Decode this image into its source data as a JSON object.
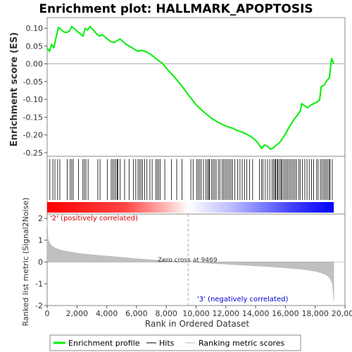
{
  "chart_data": {
    "type": "line",
    "title": "Enrichment plot: HALLMARK_APOPTOSIS",
    "xlabel": "Rank in Ordered Dataset",
    "xlim": [
      0,
      20000
    ],
    "x_ticks": [
      0,
      2000,
      4000,
      6000,
      8000,
      10000,
      12000,
      14000,
      16000,
      18000,
      20000
    ],
    "x_tick_labels": [
      "0",
      "2,000",
      "4,000",
      "6,000",
      "8,000",
      "10,000",
      "12,000",
      "14,000",
      "16,000",
      "18,000",
      "20,000"
    ],
    "es_panel": {
      "ylabel": "Enrichment score (ES)",
      "ylim": [
        -0.26,
        0.13
      ],
      "y_ticks": [
        0.1,
        0.05,
        0.0,
        -0.05,
        -0.1,
        -0.15,
        -0.2,
        -0.25
      ],
      "y_tick_labels": [
        "0.10",
        "0.05",
        "0.00",
        "-0.05",
        "-0.10",
        "-0.15",
        "-0.20",
        "-0.25"
      ],
      "series": [
        {
          "name": "Enrichment profile",
          "color": "#00ee00",
          "x": [
            0,
            150,
            300,
            450,
            600,
            750,
            900,
            1100,
            1300,
            1500,
            1650,
            1800,
            2000,
            2200,
            2400,
            2550,
            2700,
            2900,
            3100,
            3300,
            3500,
            3700,
            3900,
            4100,
            4300,
            4500,
            4700,
            4900,
            5100,
            5300,
            5500,
            5700,
            5900,
            6100,
            6300,
            6500,
            6700,
            6900,
            7100,
            7300,
            7500,
            7700,
            8000,
            8500,
            9000,
            9500,
            10000,
            10500,
            11000,
            11500,
            12000,
            12500,
            12800,
            13100,
            13400,
            13700,
            14000,
            14200,
            14400,
            14600,
            14800,
            15000,
            15200,
            15400,
            15600,
            15800,
            16000,
            16200,
            16400,
            16600,
            16800,
            17000,
            17100,
            17300,
            17500,
            17700,
            17900,
            18100,
            18300,
            18400,
            18600,
            18800,
            18950,
            19100,
            19250
          ],
          "y": [
            0.045,
            0.035,
            0.055,
            0.045,
            0.075,
            0.102,
            0.098,
            0.09,
            0.088,
            0.092,
            0.105,
            0.1,
            0.092,
            0.085,
            0.078,
            0.1,
            0.095,
            0.105,
            0.095,
            0.085,
            0.078,
            0.082,
            0.075,
            0.068,
            0.062,
            0.06,
            0.065,
            0.07,
            0.062,
            0.055,
            0.05,
            0.045,
            0.04,
            0.035,
            0.038,
            0.036,
            0.033,
            0.028,
            0.022,
            0.015,
            0.008,
            0.003,
            -0.012,
            -0.035,
            -0.06,
            -0.088,
            -0.115,
            -0.135,
            -0.152,
            -0.165,
            -0.175,
            -0.182,
            -0.188,
            -0.192,
            -0.198,
            -0.205,
            -0.215,
            -0.225,
            -0.238,
            -0.228,
            -0.232,
            -0.24,
            -0.236,
            -0.228,
            -0.222,
            -0.21,
            -0.198,
            -0.182,
            -0.168,
            -0.155,
            -0.145,
            -0.132,
            -0.112,
            -0.118,
            -0.124,
            -0.116,
            -0.112,
            -0.108,
            -0.102,
            -0.064,
            -0.06,
            -0.046,
            -0.04,
            0.015,
            0.0
          ]
        }
      ]
    },
    "hits_panel": {
      "name": "Hits",
      "hit_ranks": [
        180,
        380,
        520,
        700,
        850,
        1350,
        1550,
        1650,
        1750,
        2100,
        2400,
        2500,
        2600,
        2750,
        3400,
        3550,
        4050,
        4300,
        4400,
        4500,
        4600,
        4700,
        4750,
        4900,
        5200,
        5500,
        5800,
        5950,
        6100,
        6200,
        6300,
        6400,
        6550,
        6700,
        6900,
        7050,
        7300,
        7400,
        7500,
        7600,
        7900,
        8350,
        8700,
        9050,
        9650,
        9800,
        10050,
        10150,
        10250,
        10350,
        10500,
        10650,
        10750,
        10850,
        10900,
        11050,
        11150,
        11250,
        11350,
        11500,
        11600,
        11750,
        11850,
        11950,
        12050,
        12150,
        12250,
        12350,
        12450,
        12600,
        12800,
        12950,
        13100,
        13250,
        13400,
        13600,
        13800,
        14250,
        14400,
        14500,
        14650,
        14800,
        14950,
        15100,
        15200,
        15300,
        15350,
        15450,
        15500,
        15600,
        15700,
        15750,
        15850,
        15950,
        16050,
        16150,
        16250,
        16350,
        16450,
        16550,
        16650,
        16750,
        16900,
        17000,
        17150,
        17300,
        17450,
        17600,
        17750,
        17900,
        18100,
        18200,
        18350,
        18450,
        18550,
        18650,
        18750,
        18850,
        18950,
        19000,
        19150
      ]
    },
    "ranking_bar": {
      "pos_color": "#ff0000",
      "neg_color": "#0000ff",
      "zero_cross": 9469
    },
    "metric_panel": {
      "name": "Ranking metric scores",
      "ylabel": "Ranked list metric (Signal2Noise)",
      "ylim": [
        -2,
        2.2
      ],
      "y_ticks": [
        2,
        1,
        0,
        -1,
        -2
      ],
      "y_tick_labels": [
        "2",
        "1",
        "0",
        "-1",
        "-2"
      ],
      "x": [
        0,
        50,
        150,
        300,
        500,
        800,
        1200,
        1700,
        2300,
        3000,
        4000,
        5000,
        6000,
        7000,
        8000,
        9000,
        9469,
        10000,
        11000,
        12000,
        13000,
        14000,
        15000,
        16000,
        17000,
        17600,
        18000,
        18400,
        18700,
        18900,
        19050,
        19150,
        19200,
        19250
      ],
      "values": [
        1.9,
        1.05,
        0.88,
        0.75,
        0.65,
        0.57,
        0.5,
        0.44,
        0.38,
        0.33,
        0.27,
        0.21,
        0.15,
        0.1,
        0.06,
        0.02,
        0.0,
        -0.02,
        -0.06,
        -0.1,
        -0.14,
        -0.18,
        -0.22,
        -0.27,
        -0.33,
        -0.38,
        -0.43,
        -0.5,
        -0.58,
        -0.68,
        -0.82,
        -1.0,
        -1.3,
        -1.8
      ]
    },
    "annotations": {
      "pos_label": "'2' (positively correlated)",
      "neg_label": "'3' (negatively correlated)",
      "zero_cross_label": "Zero cross at 9469"
    },
    "legend": {
      "placement": "bottom",
      "entries": [
        {
          "label": "Enrichment profile",
          "color": "#00ee00"
        },
        {
          "label": "Hits",
          "color": "#000000"
        },
        {
          "label": "Ranking metric scores",
          "color": "#bbbbbb"
        }
      ]
    }
  }
}
